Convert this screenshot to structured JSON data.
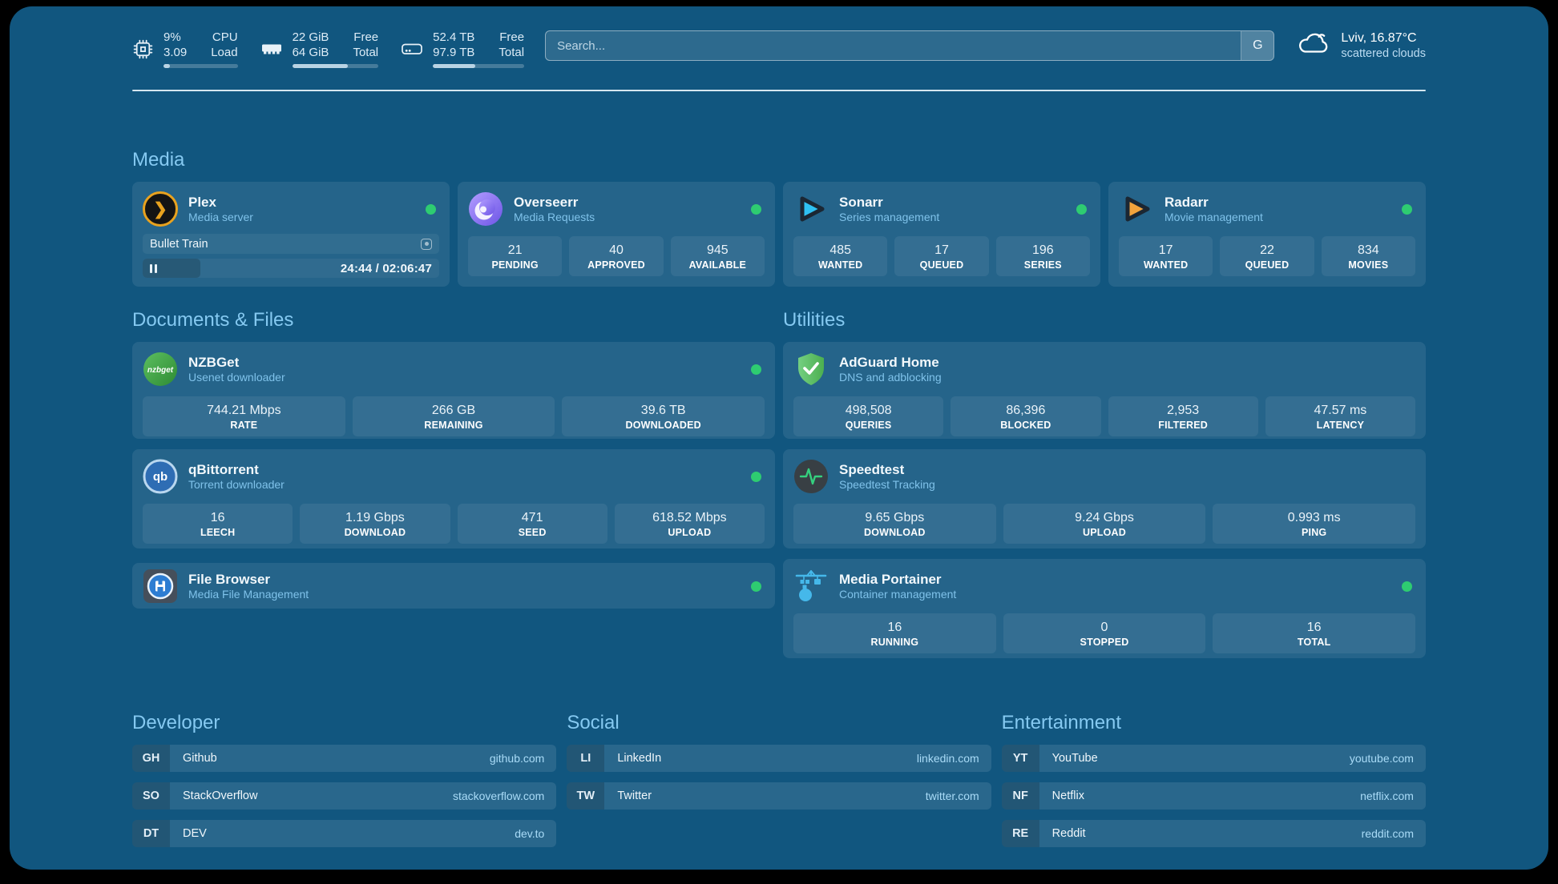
{
  "colors": {
    "page_bg": "#11567f",
    "accent": "#85c9f1",
    "status_ok": "#2ecc71",
    "plex_amber": "#e8a21f"
  },
  "header": {
    "stats": [
      {
        "icon": "cpu-icon",
        "value1": "9%",
        "value2": "3.09",
        "label1": "CPU",
        "label2": "Load",
        "progress": 9
      },
      {
        "icon": "ram-icon",
        "value1": "22 GiB",
        "value2": "64 GiB",
        "label1": "Free",
        "label2": "Total",
        "progress": 65
      },
      {
        "icon": "disk-icon",
        "value1": "52.4 TB",
        "value2": "97.9 TB",
        "label1": "Free",
        "label2": "Total",
        "progress": 46
      }
    ],
    "search": {
      "placeholder": "Search...",
      "button": "G"
    },
    "weather": {
      "icon": "cloud-icon",
      "title": "Lviv, 16.87°C",
      "subtitle": "scattered clouds"
    }
  },
  "media": {
    "title": "Media",
    "plex": {
      "icon": "plex-icon",
      "name": "Plex",
      "desc": "Media server",
      "now_playing": "Bullet Train",
      "time": "24:44 / 02:06:47",
      "progress": 19.5
    },
    "overseerr": {
      "icon": "overseerr-icon",
      "name": "Overseerr",
      "desc": "Media Requests",
      "stats": [
        {
          "value": "21",
          "label": "PENDING"
        },
        {
          "value": "40",
          "label": "APPROVED"
        },
        {
          "value": "945",
          "label": "AVAILABLE"
        }
      ]
    },
    "sonarr": {
      "icon": "sonarr-icon",
      "name": "Sonarr",
      "desc": "Series management",
      "stats": [
        {
          "value": "485",
          "label": "WANTED"
        },
        {
          "value": "17",
          "label": "QUEUED"
        },
        {
          "value": "196",
          "label": "SERIES"
        }
      ]
    },
    "radarr": {
      "icon": "radarr-icon",
      "name": "Radarr",
      "desc": "Movie management",
      "stats": [
        {
          "value": "17",
          "label": "WANTED"
        },
        {
          "value": "22",
          "label": "QUEUED"
        },
        {
          "value": "834",
          "label": "MOVIES"
        }
      ]
    }
  },
  "documents": {
    "title": "Documents & Files",
    "nzbget": {
      "icon": "nzbget-icon",
      "name": "NZBGet",
      "desc": "Usenet downloader",
      "stats": [
        {
          "value": "744.21 Mbps",
          "label": "RATE"
        },
        {
          "value": "266 GB",
          "label": "REMAINING"
        },
        {
          "value": "39.6 TB",
          "label": "DOWNLOADED"
        }
      ]
    },
    "qbittorrent": {
      "icon": "qbittorrent-icon",
      "name": "qBittorrent",
      "desc": "Torrent downloader",
      "stats": [
        {
          "value": "16",
          "label": "LEECH"
        },
        {
          "value": "1.19 Gbps",
          "label": "DOWNLOAD"
        },
        {
          "value": "471",
          "label": "SEED"
        },
        {
          "value": "618.52 Mbps",
          "label": "UPLOAD"
        }
      ]
    },
    "filebrowser": {
      "icon": "filebrowser-icon",
      "name": "File Browser",
      "desc": "Media File Management"
    }
  },
  "utilities": {
    "title": "Utilities",
    "adguard": {
      "icon": "adguard-icon",
      "name": "AdGuard Home",
      "desc": "DNS and adblocking",
      "stats": [
        {
          "value": "498,508",
          "label": "QUERIES"
        },
        {
          "value": "86,396",
          "label": "BLOCKED"
        },
        {
          "value": "2,953",
          "label": "FILTERED"
        },
        {
          "value": "47.57 ms",
          "label": "LATENCY"
        }
      ]
    },
    "speedtest": {
      "icon": "speedtest-icon",
      "name": "Speedtest",
      "desc": "Speedtest Tracking",
      "stats": [
        {
          "value": "9.65 Gbps",
          "label": "DOWNLOAD"
        },
        {
          "value": "9.24 Gbps",
          "label": "UPLOAD"
        },
        {
          "value": "0.993 ms",
          "label": "PING"
        }
      ]
    },
    "portainer": {
      "icon": "portainer-icon",
      "name": "Media Portainer",
      "desc": "Container management",
      "stats": [
        {
          "value": "16",
          "label": "RUNNING"
        },
        {
          "value": "0",
          "label": "STOPPED"
        },
        {
          "value": "16",
          "label": "TOTAL"
        }
      ]
    }
  },
  "bookmarks": {
    "developer": {
      "title": "Developer",
      "items": [
        {
          "abbr": "GH",
          "name": "Github",
          "url": "github.com"
        },
        {
          "abbr": "SO",
          "name": "StackOverflow",
          "url": "stackoverflow.com"
        },
        {
          "abbr": "DT",
          "name": "DEV",
          "url": "dev.to"
        }
      ]
    },
    "social": {
      "title": "Social",
      "items": [
        {
          "abbr": "LI",
          "name": "LinkedIn",
          "url": "linkedin.com"
        },
        {
          "abbr": "TW",
          "name": "Twitter",
          "url": "twitter.com"
        }
      ]
    },
    "entertainment": {
      "title": "Entertainment",
      "items": [
        {
          "abbr": "YT",
          "name": "YouTube",
          "url": "youtube.com"
        },
        {
          "abbr": "NF",
          "name": "Netflix",
          "url": "netflix.com"
        },
        {
          "abbr": "RE",
          "name": "Reddit",
          "url": "reddit.com"
        }
      ]
    }
  }
}
